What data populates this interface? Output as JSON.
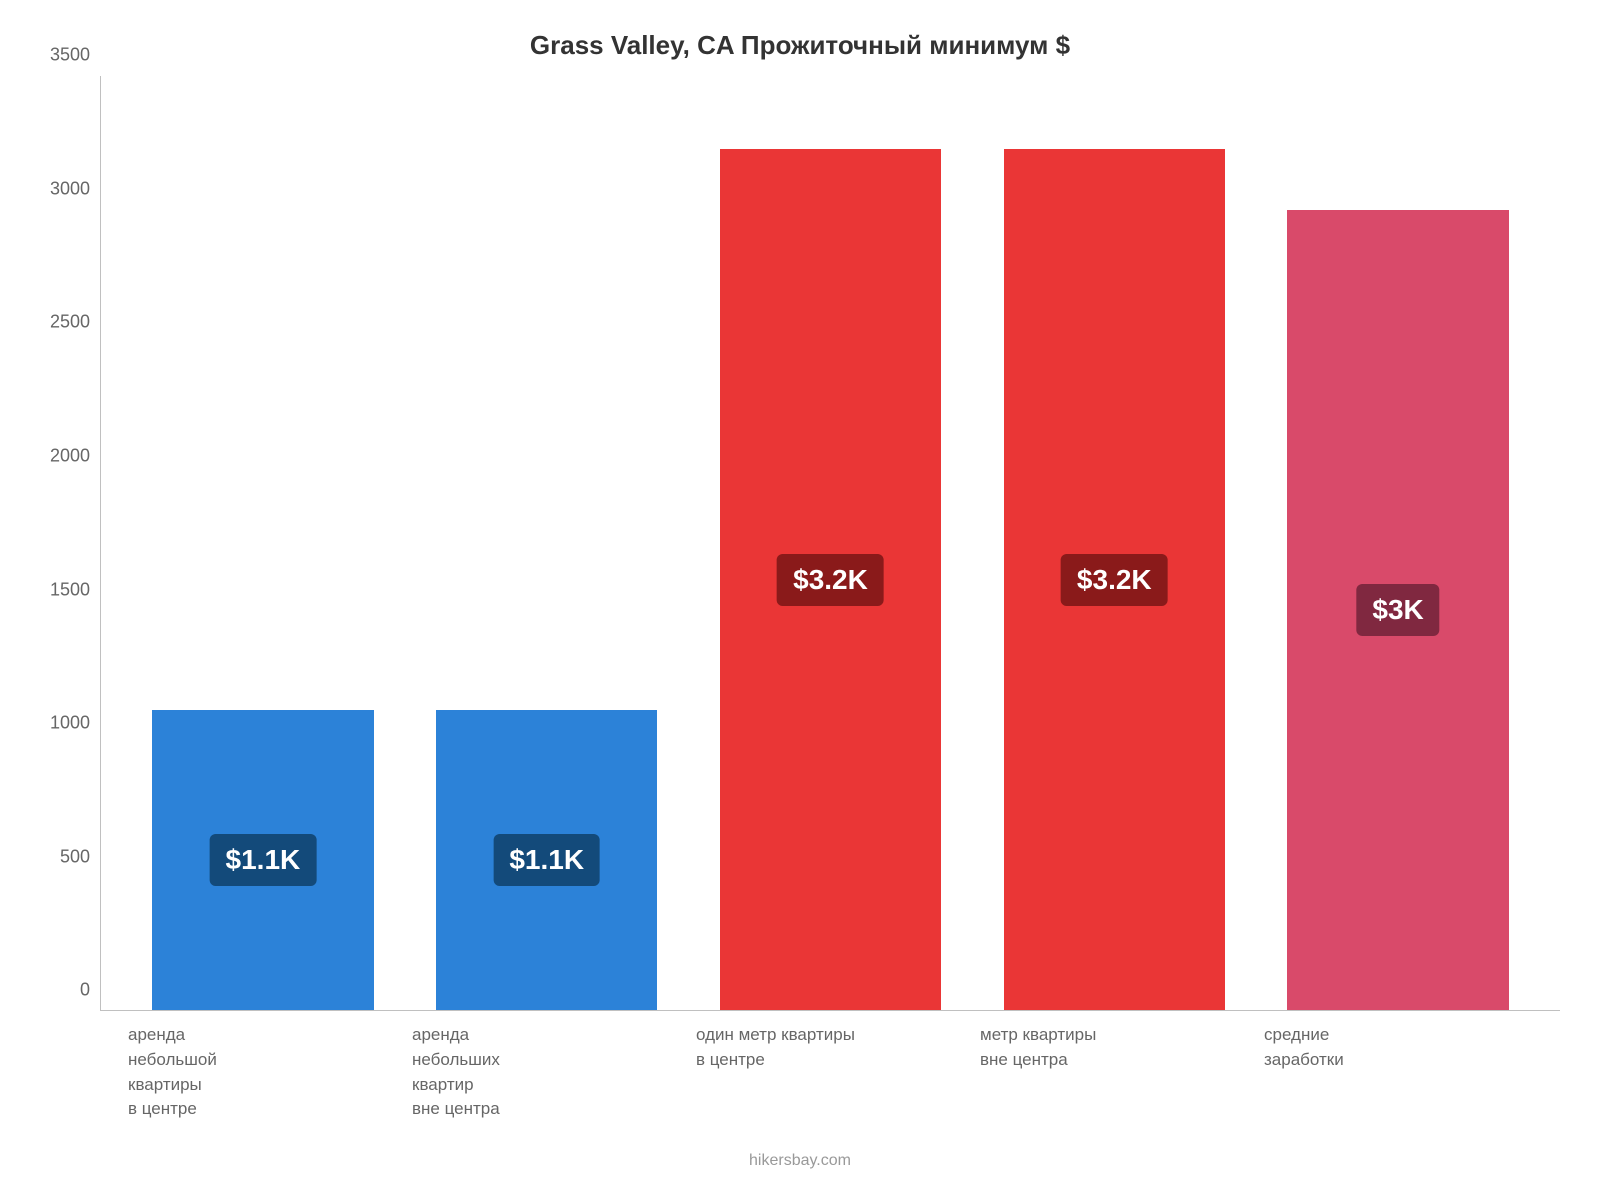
{
  "chart": {
    "title": "Grass Valley, CA Прожиточный минимум $",
    "title_fontsize": 26,
    "title_color": "#333333",
    "background_color": "#ffffff",
    "axis_color": "#c0c0c0",
    "tick_color": "#666666",
    "tick_fontsize": 18,
    "xlabel_fontsize": 17,
    "xlabel_color": "#666666",
    "type": "bar",
    "ylim": [
      0,
      3500
    ],
    "ytick_step": 500,
    "yticks": [
      {
        "value": 0,
        "label": "0"
      },
      {
        "value": 500,
        "label": "500"
      },
      {
        "value": 1000,
        "label": "1000"
      },
      {
        "value": 1500,
        "label": "1500"
      },
      {
        "value": 2000,
        "label": "2000"
      },
      {
        "value": 2500,
        "label": "2500"
      },
      {
        "value": 3000,
        "label": "3000"
      },
      {
        "value": 3500,
        "label": "3500"
      }
    ],
    "bar_width_pct": 78,
    "categories": [
      {
        "lines": [
          "аренда",
          "небольшой",
          "квартиры",
          "в центре"
        ]
      },
      {
        "lines": [
          "аренда",
          "небольших",
          "квартир",
          "вне центра"
        ]
      },
      {
        "lines": [
          "один метр квартиры",
          "в центре"
        ]
      },
      {
        "lines": [
          "метр квартиры",
          "вне центра"
        ]
      },
      {
        "lines": [
          "средние",
          "заработки"
        ]
      }
    ],
    "values": [
      1125,
      1125,
      3225,
      3225,
      3000
    ],
    "value_labels": [
      "$1.1K",
      "$1.1K",
      "$3.2K",
      "$3.2K",
      "$3K"
    ],
    "bar_colors": [
      "#2c82d8",
      "#2c82d8",
      "#ea3636",
      "#ea3636",
      "#d94a6a"
    ],
    "label_bg_colors": [
      "#134a7a",
      "#134a7a",
      "#8a1a1a",
      "#8a1a1a",
      "#802840"
    ],
    "label_text_color": "#ffffff",
    "label_fontsize": 28,
    "label_border_radius": 6,
    "footer": "hikersbay.com",
    "footer_color": "#999999",
    "footer_fontsize": 16
  }
}
